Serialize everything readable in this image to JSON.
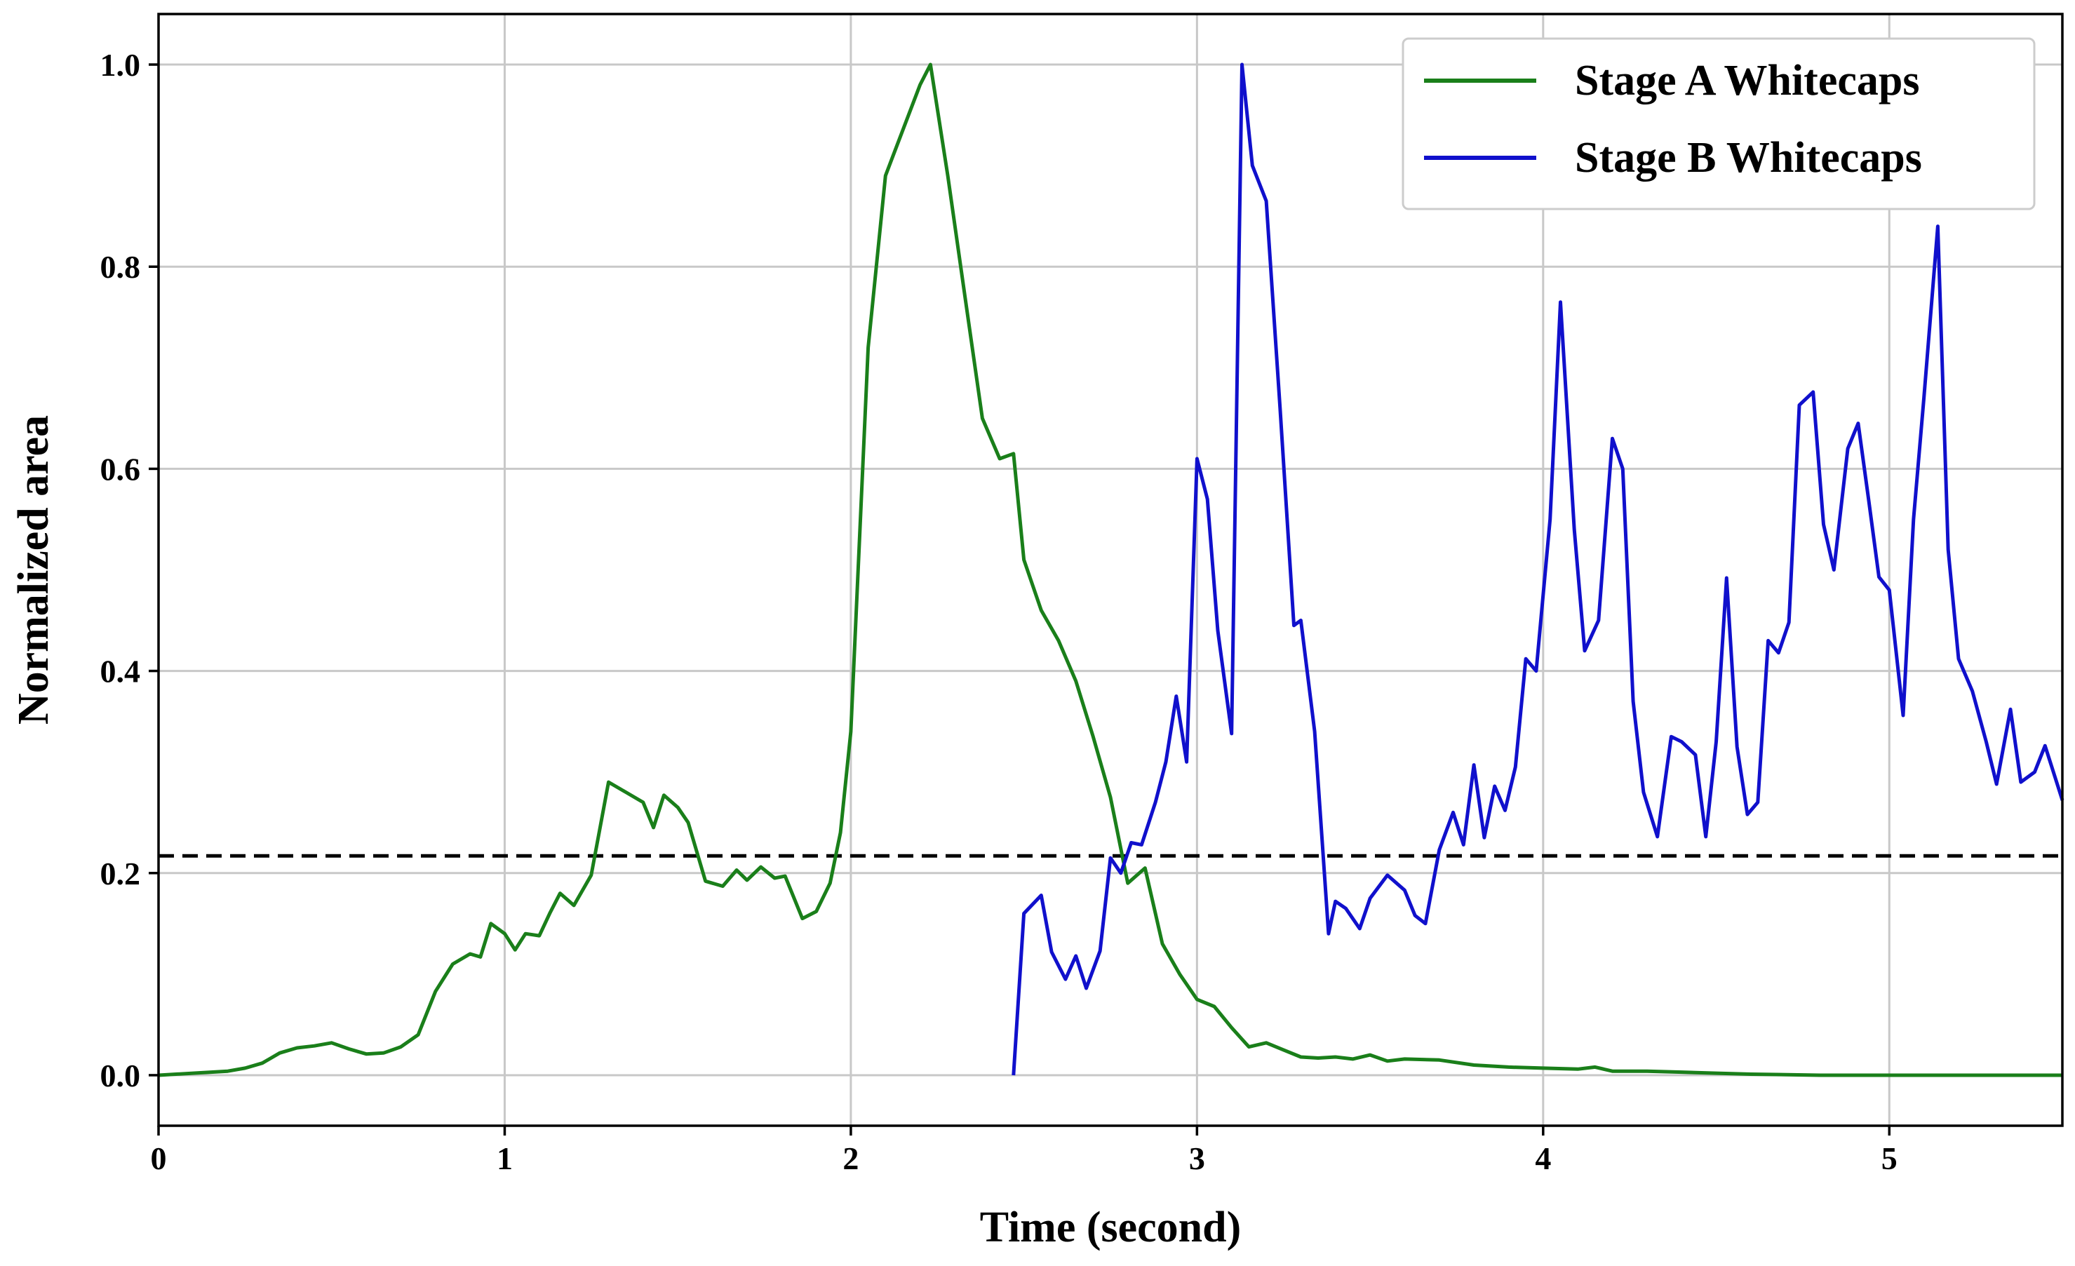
{
  "chart_data": {
    "type": "line",
    "xlabel": "Time (second)",
    "ylabel": "Normalized area",
    "xlim": [
      0,
      5.5
    ],
    "ylim": [
      -0.05,
      1.05
    ],
    "xticks": [
      0,
      1,
      2,
      3,
      4,
      5
    ],
    "yticks": [
      0.0,
      0.2,
      0.4,
      0.6,
      0.8,
      1.0
    ],
    "xtick_labels": [
      "0",
      "1",
      "2",
      "3",
      "4",
      "5"
    ],
    "ytick_labels": [
      "0.0",
      "0.2",
      "0.4",
      "0.6",
      "0.8",
      "1.0"
    ],
    "grid": true,
    "legend_position": "top-right",
    "threshold": {
      "y": 0.217,
      "color": "#000000",
      "style": "dashed"
    },
    "series": [
      {
        "name": "Stage A Whitecaps",
        "color": "#1a7f1a",
        "x": [
          0,
          0.1,
          0.2,
          0.25,
          0.3,
          0.35,
          0.4,
          0.45,
          0.5,
          0.55,
          0.6,
          0.65,
          0.7,
          0.75,
          0.8,
          0.85,
          0.9,
          0.93,
          0.96,
          1.0,
          1.03,
          1.06,
          1.1,
          1.13,
          1.16,
          1.2,
          1.25,
          1.3,
          1.35,
          1.4,
          1.43,
          1.46,
          1.5,
          1.53,
          1.58,
          1.63,
          1.67,
          1.7,
          1.74,
          1.78,
          1.81,
          1.86,
          1.9,
          1.94,
          1.97,
          2.0,
          2.05,
          2.1,
          2.15,
          2.2,
          2.23,
          2.28,
          2.33,
          2.38,
          2.43,
          2.47,
          2.5,
          2.55,
          2.6,
          2.65,
          2.7,
          2.75,
          2.8,
          2.85,
          2.9,
          2.95,
          3.0,
          3.05,
          3.1,
          3.15,
          3.2,
          3.25,
          3.3,
          3.35,
          3.4,
          3.45,
          3.5,
          3.55,
          3.6,
          3.7,
          3.8,
          3.9,
          4.0,
          4.1,
          4.15,
          4.2,
          4.3,
          4.4,
          4.5,
          4.6,
          4.8,
          5.0,
          5.2,
          5.5
        ],
        "values": [
          0.0,
          0.002,
          0.004,
          0.007,
          0.012,
          0.022,
          0.027,
          0.029,
          0.032,
          0.026,
          0.021,
          0.022,
          0.028,
          0.04,
          0.083,
          0.11,
          0.12,
          0.117,
          0.15,
          0.14,
          0.124,
          0.14,
          0.138,
          0.16,
          0.18,
          0.168,
          0.198,
          0.29,
          0.28,
          0.27,
          0.245,
          0.277,
          0.265,
          0.25,
          0.192,
          0.187,
          0.203,
          0.193,
          0.206,
          0.195,
          0.197,
          0.155,
          0.162,
          0.19,
          0.24,
          0.34,
          0.72,
          0.89,
          0.935,
          0.98,
          1.0,
          0.89,
          0.77,
          0.65,
          0.61,
          0.615,
          0.51,
          0.46,
          0.43,
          0.39,
          0.335,
          0.275,
          0.19,
          0.205,
          0.13,
          0.1,
          0.075,
          0.068,
          0.047,
          0.028,
          0.032,
          0.025,
          0.018,
          0.017,
          0.018,
          0.016,
          0.02,
          0.014,
          0.016,
          0.015,
          0.01,
          0.008,
          0.007,
          0.006,
          0.008,
          0.004,
          0.004,
          0.003,
          0.002,
          0.001,
          0.0,
          0.0,
          0.0,
          0.0
        ]
      },
      {
        "name": "Stage B Whitecaps",
        "color": "#1010cc",
        "x": [
          2.47,
          2.5,
          2.55,
          2.58,
          2.62,
          2.65,
          2.68,
          2.72,
          2.75,
          2.78,
          2.81,
          2.84,
          2.88,
          2.91,
          2.94,
          2.97,
          3.0,
          3.03,
          3.06,
          3.1,
          3.13,
          3.16,
          3.2,
          3.24,
          3.28,
          3.3,
          3.34,
          3.38,
          3.4,
          3.43,
          3.47,
          3.5,
          3.55,
          3.6,
          3.63,
          3.66,
          3.7,
          3.74,
          3.77,
          3.8,
          3.83,
          3.86,
          3.89,
          3.92,
          3.95,
          3.98,
          4.02,
          4.05,
          4.09,
          4.12,
          4.16,
          4.2,
          4.23,
          4.26,
          4.29,
          4.33,
          4.37,
          4.4,
          4.44,
          4.47,
          4.5,
          4.53,
          4.56,
          4.59,
          4.62,
          4.65,
          4.68,
          4.71,
          4.74,
          4.78,
          4.81,
          4.84,
          4.88,
          4.91,
          4.94,
          4.97,
          5.0,
          5.04,
          5.07,
          5.1,
          5.14,
          5.17,
          5.2,
          5.24,
          5.28,
          5.31,
          5.35,
          5.38,
          5.42,
          5.45,
          5.5
        ],
        "values": [
          0.0,
          0.16,
          0.178,
          0.122,
          0.095,
          0.118,
          0.086,
          0.123,
          0.215,
          0.2,
          0.23,
          0.228,
          0.27,
          0.31,
          0.375,
          0.31,
          0.61,
          0.57,
          0.44,
          0.338,
          1.0,
          0.9,
          0.865,
          0.66,
          0.445,
          0.45,
          0.34,
          0.14,
          0.172,
          0.165,
          0.145,
          0.175,
          0.198,
          0.183,
          0.158,
          0.15,
          0.223,
          0.26,
          0.228,
          0.307,
          0.235,
          0.286,
          0.262,
          0.305,
          0.412,
          0.4,
          0.55,
          0.765,
          0.54,
          0.42,
          0.45,
          0.63,
          0.6,
          0.37,
          0.28,
          0.236,
          0.335,
          0.33,
          0.317,
          0.236,
          0.33,
          0.492,
          0.325,
          0.258,
          0.27,
          0.43,
          0.418,
          0.448,
          0.663,
          0.676,
          0.545,
          0.5,
          0.62,
          0.645,
          0.57,
          0.493,
          0.48,
          0.356,
          0.55,
          0.67,
          0.84,
          0.52,
          0.412,
          0.38,
          0.33,
          0.288,
          0.362,
          0.29,
          0.3,
          0.326,
          0.272
        ]
      }
    ]
  }
}
